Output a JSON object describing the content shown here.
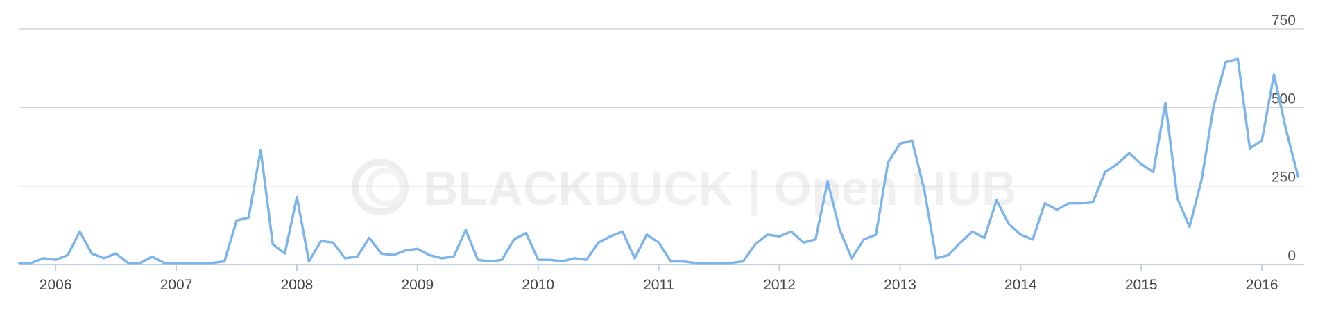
{
  "chart_data": {
    "type": "line",
    "y_ticks": [
      "0",
      "250",
      "500",
      "750"
    ],
    "ylim": [
      0,
      750
    ],
    "x_ticks": [
      "2006",
      "2007",
      "2008",
      "2009",
      "2010",
      "2011",
      "2012",
      "2013",
      "2014",
      "2015",
      "2016"
    ],
    "grid": true,
    "legend": "none",
    "color": "#7cb5ec",
    "watermark": "BLACKDUCK | Open HUB",
    "x": [
      2005.7,
      2005.8,
      2005.9,
      2006.0,
      2006.1,
      2006.2,
      2006.3,
      2006.4,
      2006.5,
      2006.6,
      2006.7,
      2006.8,
      2006.9,
      2007.0,
      2007.1,
      2007.2,
      2007.3,
      2007.4,
      2007.5,
      2007.6,
      2007.7,
      2007.8,
      2007.9,
      2008.0,
      2008.1,
      2008.2,
      2008.3,
      2008.4,
      2008.5,
      2008.6,
      2008.7,
      2008.8,
      2008.9,
      2009.0,
      2009.1,
      2009.2,
      2009.3,
      2009.4,
      2009.5,
      2009.6,
      2009.7,
      2009.8,
      2009.9,
      2010.0,
      2010.1,
      2010.2,
      2010.3,
      2010.4,
      2010.5,
      2010.6,
      2010.7,
      2010.8,
      2010.9,
      2011.0,
      2011.1,
      2011.2,
      2011.3,
      2011.4,
      2011.5,
      2011.6,
      2011.7,
      2011.8,
      2011.9,
      2012.0,
      2012.1,
      2012.2,
      2012.3,
      2012.4,
      2012.5,
      2012.6,
      2012.7,
      2012.8,
      2012.9,
      2013.0,
      2013.1,
      2013.2,
      2013.3,
      2013.4,
      2013.5,
      2013.6,
      2013.7,
      2013.8,
      2013.9,
      2014.0,
      2014.1,
      2014.2,
      2014.3,
      2014.4,
      2014.5,
      2014.6,
      2014.7,
      2014.8,
      2014.9,
      2015.0,
      2015.1,
      2015.2,
      2015.3,
      2015.4,
      2015.5,
      2015.6,
      2015.7,
      2015.8,
      2015.9,
      2016.0,
      2016.1,
      2016.2,
      2016.3
    ],
    "values": [
      5,
      5,
      20,
      15,
      30,
      105,
      35,
      20,
      35,
      5,
      5,
      25,
      5,
      5,
      5,
      5,
      5,
      10,
      140,
      150,
      365,
      65,
      35,
      215,
      10,
      75,
      70,
      20,
      25,
      85,
      35,
      30,
      45,
      50,
      30,
      20,
      25,
      110,
      15,
      10,
      15,
      80,
      100,
      15,
      15,
      10,
      20,
      15,
      70,
      90,
      105,
      20,
      95,
      70,
      10,
      10,
      5,
      5,
      5,
      5,
      10,
      65,
      95,
      90,
      105,
      70,
      80,
      265,
      110,
      20,
      80,
      95,
      325,
      385,
      395,
      240,
      20,
      30,
      70,
      105,
      85,
      205,
      130,
      95,
      80,
      195,
      175,
      195,
      195,
      200,
      295,
      320,
      355,
      320,
      295,
      515,
      210,
      120,
      270,
      505,
      645,
      655,
      370,
      395,
      605,
      430,
      280
    ]
  }
}
